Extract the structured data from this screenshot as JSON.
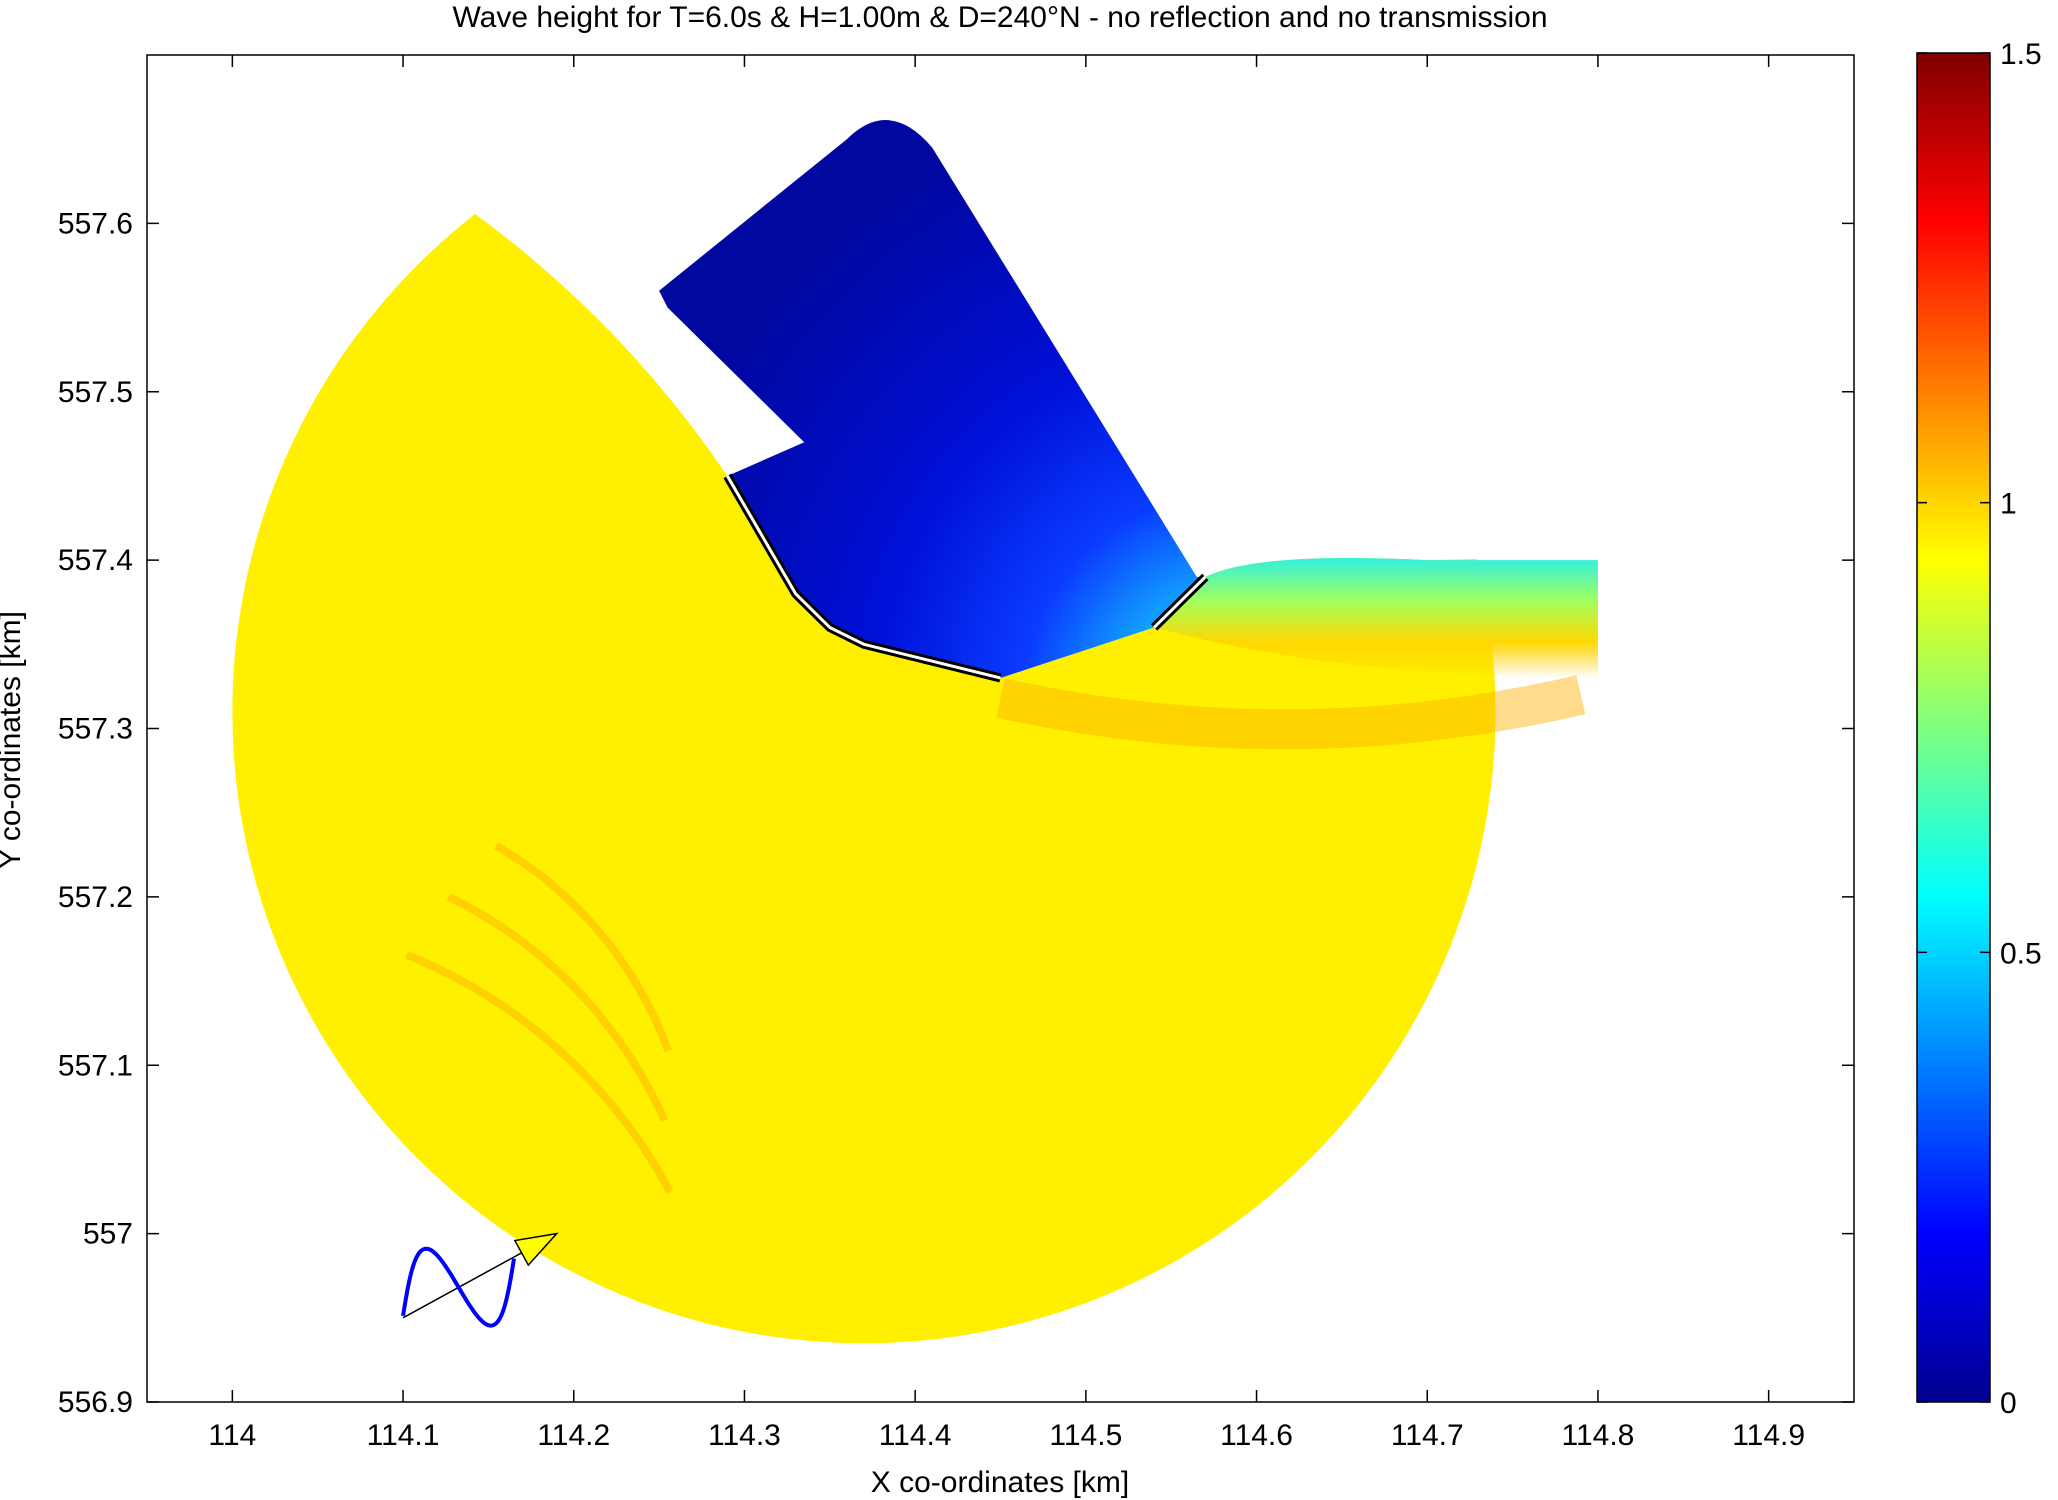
{
  "chart_data": {
    "type": "heatmap",
    "title": "Wave height for T=6.0s & H=1.00m & D=240°N - no reflection and no transmission",
    "xlabel": "X co-ordinates [km]",
    "ylabel": "Y co-ordinates [km]",
    "xlim": [
      113.95,
      114.95
    ],
    "ylim": [
      556.9,
      557.7
    ],
    "x_ticks": [
      "114",
      "114.1",
      "114.2",
      "114.3",
      "114.4",
      "114.5",
      "114.6",
      "114.7",
      "114.8",
      "114.9"
    ],
    "x_tick_values": [
      114.0,
      114.1,
      114.2,
      114.3,
      114.4,
      114.5,
      114.6,
      114.7,
      114.8,
      114.9
    ],
    "y_ticks": [
      "556.9",
      "557",
      "557.1",
      "557.2",
      "557.3",
      "557.4",
      "557.5",
      "557.6"
    ],
    "y_tick_values": [
      556.9,
      557.0,
      557.1,
      557.2,
      557.3,
      557.4,
      557.5,
      557.6
    ],
    "colorbar": {
      "range": [
        0,
        1.5
      ],
      "ticks": [
        "0",
        "0.5",
        "1",
        "1.5"
      ],
      "tick_values": [
        0,
        0.5,
        1,
        1.5
      ],
      "colormap": "jet"
    },
    "domain": {
      "outer_circle_center": [
        114.37,
        557.31
      ],
      "outer_circle_radius": 0.37,
      "harbour_polygon": [
        [
          114.25,
          557.56
        ],
        [
          114.36,
          557.65
        ],
        [
          114.41,
          557.64
        ],
        [
          114.56,
          557.39
        ],
        [
          114.54,
          557.36
        ],
        [
          114.45,
          557.33
        ],
        [
          114.3,
          557.45
        ],
        [
          114.33,
          557.47
        ]
      ],
      "breakwater_main": [
        [
          114.29,
          557.45
        ],
        [
          114.33,
          557.38
        ],
        [
          114.35,
          557.36
        ],
        [
          114.37,
          557.35
        ],
        [
          114.45,
          557.33
        ]
      ],
      "breakwater_north": [
        [
          114.54,
          557.36
        ],
        [
          114.57,
          557.39
        ]
      ],
      "values": {
        "open_sea": 0.96,
        "lee_harbour": 0.08,
        "harbour_entrance": 0.5,
        "shelter_strip": 0.6
      }
    },
    "wave_direction_arrow": {
      "start": [
        114.1,
        556.95
      ],
      "end": [
        114.19,
        557.0
      ],
      "color": "#ffff00"
    },
    "colors": {
      "sea": "#ffcc00",
      "harbour": "#0010c8",
      "breakwater": "#000000",
      "arrow_curve": "#0000ff"
    }
  }
}
